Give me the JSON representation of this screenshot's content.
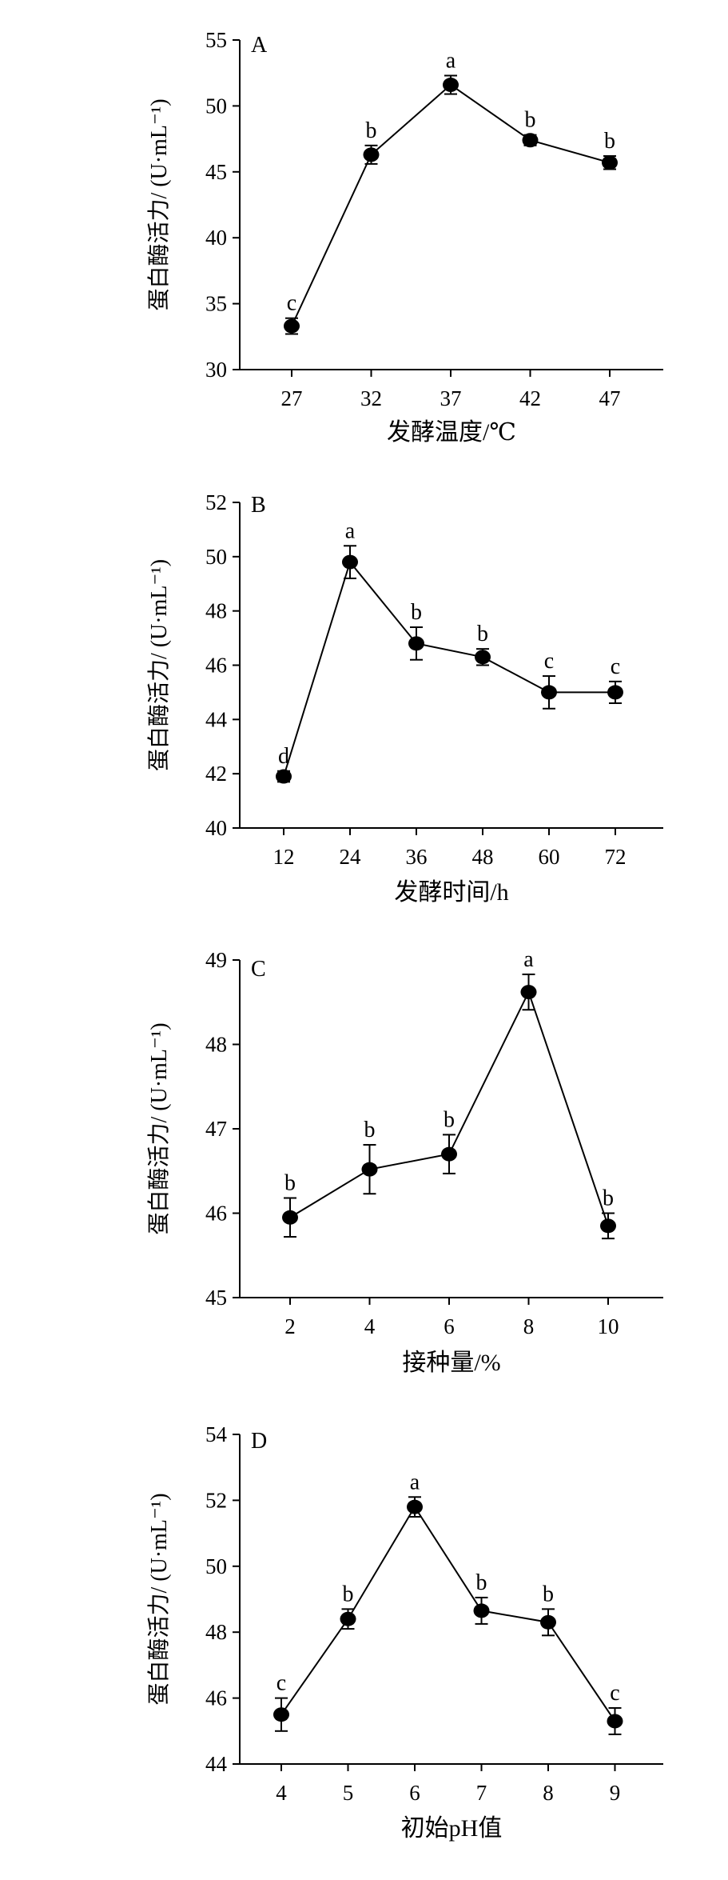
{
  "y_axis_label": "蛋白酶活力/ (U·mL⁻¹)",
  "chart_data": [
    {
      "type": "line",
      "panel": "A",
      "xlabel": "发酵温度/℃",
      "ylabel": "蛋白酶活力/ (U·mL⁻¹)",
      "x": [
        27,
        32,
        37,
        42,
        47
      ],
      "values": [
        33.3,
        46.3,
        51.6,
        47.4,
        45.7
      ],
      "errors": [
        0.6,
        0.7,
        0.7,
        0.4,
        0.5
      ],
      "letters": [
        "c",
        "b",
        "a",
        "b",
        "b"
      ],
      "ylim": [
        30,
        55
      ],
      "yticks": [
        30,
        35,
        40,
        45,
        50,
        55
      ]
    },
    {
      "type": "line",
      "panel": "B",
      "xlabel": "发酵时间/h",
      "ylabel": "蛋白酶活力/ (U·mL⁻¹)",
      "x": [
        12,
        24,
        36,
        48,
        60,
        72
      ],
      "values": [
        41.9,
        49.8,
        46.8,
        46.3,
        45.0,
        45.0
      ],
      "errors": [
        0.2,
        0.6,
        0.6,
        0.3,
        0.6,
        0.4
      ],
      "letters": [
        "d",
        "a",
        "b",
        "b",
        "c",
        "c"
      ],
      "ylim": [
        40,
        52
      ],
      "yticks": [
        40,
        42,
        44,
        46,
        48,
        50,
        52
      ]
    },
    {
      "type": "line",
      "panel": "C",
      "xlabel": "接种量/%",
      "ylabel": "蛋白酶活力/ (U·mL⁻¹)",
      "x": [
        2,
        4,
        6,
        8,
        10
      ],
      "values": [
        45.95,
        46.52,
        46.7,
        48.62,
        45.85
      ],
      "errors": [
        0.23,
        0.29,
        0.23,
        0.21,
        0.15
      ],
      "letters": [
        "b",
        "b",
        "b",
        "a",
        "b"
      ],
      "ylim": [
        45,
        49
      ],
      "yticks": [
        45,
        46,
        47,
        48,
        49
      ]
    },
    {
      "type": "line",
      "panel": "D",
      "xlabel": "初始pH值",
      "ylabel": "蛋白酶活力/ (U·mL⁻¹)",
      "x": [
        4,
        5,
        6,
        7,
        8,
        9
      ],
      "values": [
        45.5,
        48.4,
        51.8,
        48.65,
        48.3,
        45.3
      ],
      "errors": [
        0.5,
        0.3,
        0.3,
        0.4,
        0.4,
        0.4
      ],
      "letters": [
        "c",
        "b",
        "a",
        "b",
        "b",
        "c"
      ],
      "ylim": [
        44,
        54
      ],
      "yticks": [
        44,
        46,
        48,
        50,
        52,
        54
      ]
    }
  ]
}
